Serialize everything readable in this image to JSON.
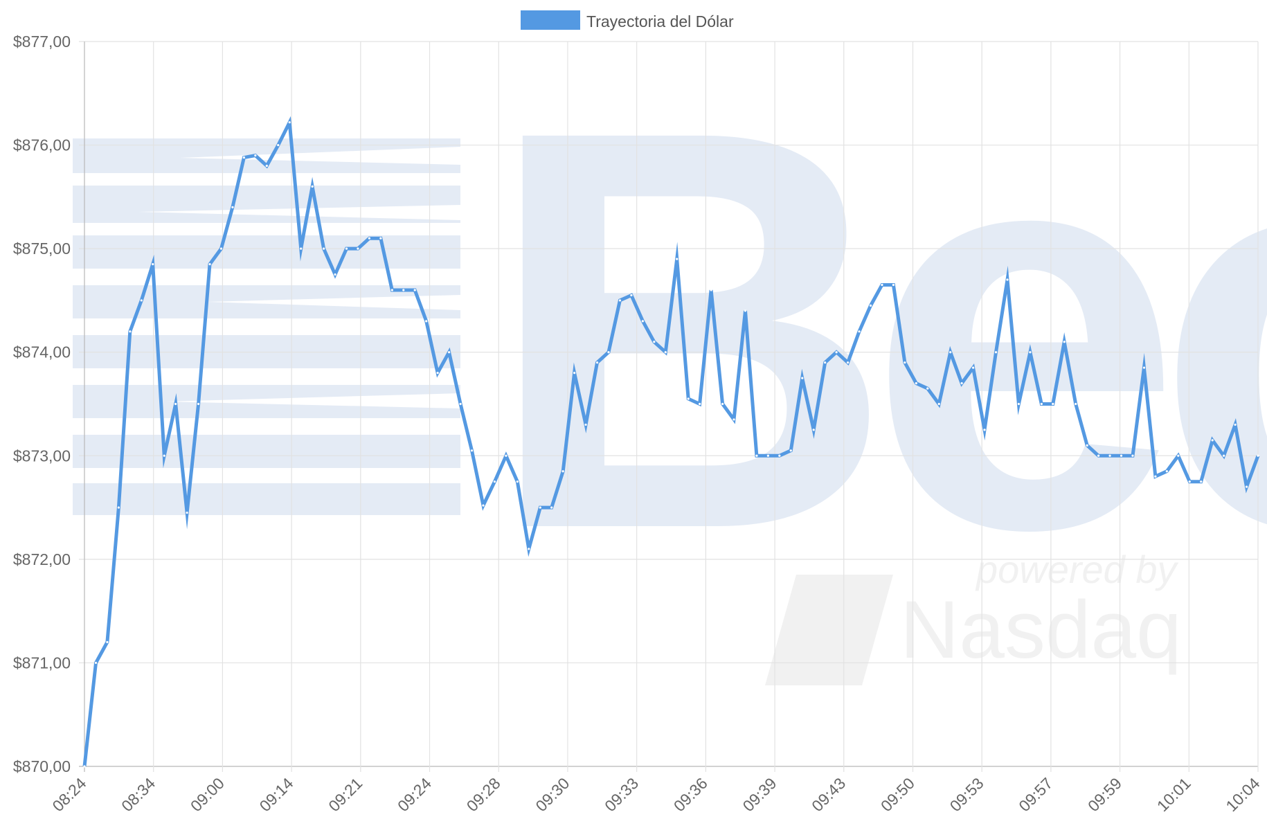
{
  "legend": {
    "label": "Trayectoria del Dólar",
    "color": "#5499e2"
  },
  "watermark": {
    "text_main": "Bec",
    "text_powered": "powered by",
    "text_brand": "Nasdaq"
  },
  "chart_data": {
    "type": "line",
    "title": "",
    "xlabel": "",
    "ylabel": "",
    "ylim": [
      870,
      877
    ],
    "y_ticks": [
      "$870,00",
      "$871,00",
      "$872,00",
      "$873,00",
      "$874,00",
      "$875,00",
      "$876,00",
      "$877,00"
    ],
    "x_tick_labels": [
      "08:24",
      "08:34",
      "09:00",
      "09:14",
      "09:21",
      "09:24",
      "09:28",
      "09:30",
      "09:33",
      "09:36",
      "09:39",
      "09:43",
      "09:50",
      "09:53",
      "09:57",
      "09:59",
      "10:01",
      "10:04"
    ],
    "grid": true,
    "legend_position": "top",
    "series": [
      {
        "name": "Trayectoria del Dólar",
        "color": "#5499e2",
        "values": [
          870.0,
          871.0,
          871.2,
          872.5,
          874.2,
          874.5,
          874.85,
          873.0,
          873.5,
          872.45,
          873.5,
          874.85,
          875.0,
          875.4,
          875.88,
          875.9,
          875.8,
          876.0,
          876.22,
          875.0,
          875.6,
          875.0,
          874.75,
          875.0,
          875.0,
          875.1,
          875.1,
          874.6,
          874.6,
          874.6,
          874.3,
          873.8,
          874.0,
          873.5,
          873.05,
          872.52,
          872.75,
          873.0,
          872.75,
          872.1,
          872.5,
          872.5,
          872.85,
          873.8,
          873.3,
          873.9,
          874.0,
          874.5,
          874.55,
          874.3,
          874.1,
          874.0,
          874.9,
          873.55,
          873.5,
          874.6,
          873.5,
          873.35,
          874.4,
          873.0,
          873.0,
          873.0,
          873.05,
          873.75,
          873.25,
          873.9,
          874.0,
          873.9,
          874.2,
          874.45,
          874.65,
          874.65,
          873.9,
          873.7,
          873.65,
          873.5,
          874.0,
          873.7,
          873.85,
          873.25,
          874.0,
          874.7,
          873.5,
          874.0,
          873.5,
          873.5,
          874.1,
          873.5,
          873.1,
          873.0,
          873.0,
          873.0,
          873.0,
          873.85,
          872.8,
          872.85,
          873.0,
          872.75,
          872.75,
          873.15,
          873.0,
          873.3,
          872.7,
          873.0
        ]
      }
    ]
  }
}
